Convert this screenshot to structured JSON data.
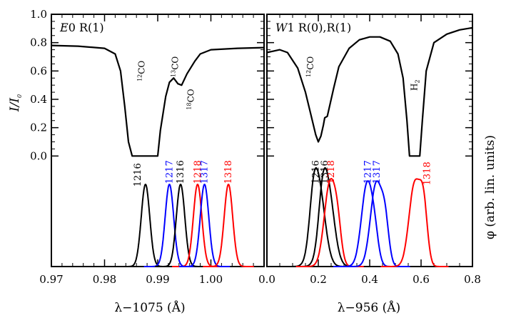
{
  "chart_data": {
    "type": "line",
    "y_axis": {
      "label_main": "I/I",
      "label_sub": "0",
      "ylim": [
        -0.78,
        1.0
      ],
      "ticks": [
        "0.0",
        "0.2",
        "0.4",
        "0.6",
        "0.8",
        "1.0"
      ],
      "tick_values": [
        0.0,
        0.2,
        0.4,
        0.6,
        0.8,
        1.0
      ]
    },
    "y_axis_right": {
      "label": "φ (arb. lin. units)"
    },
    "panels": [
      {
        "id": "E0",
        "label_italic": "E",
        "label_rest": "0  R(1)",
        "xlabel": "λ−1075 (Å)",
        "xlim": [
          0.97,
          1.01
        ],
        "x_ticks": [
          "0.97",
          "0.98",
          "0.99",
          "1.00"
        ],
        "x_tick_values": [
          0.97,
          0.98,
          0.99,
          1.0
        ],
        "transmission": {
          "x": [
            0.97,
            0.975,
            0.98,
            0.982,
            0.983,
            0.9838,
            0.9845,
            0.9852,
            0.986,
            0.99,
            0.9905,
            0.9915,
            0.9922,
            0.993,
            0.9938,
            0.9945,
            0.9955,
            0.997,
            0.998,
            1.0,
            1.005,
            1.01
          ],
          "y": [
            0.78,
            0.775,
            0.76,
            0.72,
            0.6,
            0.35,
            0.1,
            0.0,
            0.0,
            0.0,
            0.18,
            0.42,
            0.52,
            0.55,
            0.51,
            0.5,
            0.58,
            0.67,
            0.72,
            0.75,
            0.76,
            0.765
          ]
        },
        "annotations": [
          {
            "iso": "12",
            "mol": "CO",
            "x": 0.9875,
            "y": 0.6
          },
          {
            "iso": "13",
            "mol": "CO",
            "x": 0.9938,
            "y": 0.63
          },
          {
            "iso": "18",
            "mol": "C",
            "tail": "O",
            "x": 0.9968,
            "y": 0.4
          }
        ],
        "series": [
          {
            "name": "1216",
            "color": "#000000",
            "center": 0.9877,
            "sigma": 0.0008,
            "amp": 0.58,
            "label_y": -0.21
          },
          {
            "name": "1217",
            "color": "#0000ff",
            "center": 0.9922,
            "sigma": 0.0008,
            "amp": 0.58,
            "label_y": -0.03
          },
          {
            "name": "1316",
            "color": "#000000",
            "center": 0.9943,
            "sigma": 0.0008,
            "amp": 0.58,
            "label_y": -0.03
          },
          {
            "name": "1218",
            "color": "#ff0000",
            "center": 0.9975,
            "sigma": 0.0008,
            "amp": 0.58,
            "label_y": -0.03
          },
          {
            "name": "1317",
            "color": "#0000ff",
            "center": 0.9988,
            "sigma": 0.0008,
            "amp": 0.58,
            "label_y": -0.03
          },
          {
            "name": "1318",
            "color": "#ff0000",
            "center": 1.0033,
            "sigma": 0.0008,
            "amp": 0.58,
            "label_y": -0.03
          }
        ]
      },
      {
        "id": "W1",
        "label_italic": "W",
        "label_rest": "1  R(0),R(1)",
        "xlabel": "λ−956 (Å)",
        "xlim": [
          0.0,
          0.8
        ],
        "x_ticks": [
          "0.0",
          "0.2",
          "0.4",
          "0.6",
          "0.8"
        ],
        "x_tick_values": [
          0.0,
          0.2,
          0.4,
          0.6,
          0.8
        ],
        "transmission": {
          "x": [
            0.0,
            0.05,
            0.08,
            0.12,
            0.15,
            0.17,
            0.19,
            0.2,
            0.21,
            0.22,
            0.225,
            0.235,
            0.24,
            0.26,
            0.28,
            0.32,
            0.36,
            0.4,
            0.44,
            0.48,
            0.51,
            0.53,
            0.545,
            0.555,
            0.565,
            0.585,
            0.595,
            0.605,
            0.62,
            0.65,
            0.7,
            0.75,
            0.8
          ],
          "y": [
            0.73,
            0.75,
            0.73,
            0.62,
            0.45,
            0.3,
            0.15,
            0.1,
            0.14,
            0.22,
            0.27,
            0.28,
            0.32,
            0.48,
            0.63,
            0.76,
            0.82,
            0.84,
            0.84,
            0.81,
            0.72,
            0.55,
            0.25,
            0.0,
            0.0,
            0.0,
            0.0,
            0.25,
            0.6,
            0.8,
            0.86,
            0.89,
            0.905
          ]
        },
        "annotations": [
          {
            "iso": "12",
            "mol": "CO",
            "x": 0.18,
            "y": 0.63
          },
          {
            "mol": "H",
            "subs": "2",
            "x": 0.585,
            "y": 0.5
          }
        ],
        "series": [
          {
            "name": "1216",
            "color": "#000000",
            "components": [
              [
                0.2,
                0.025,
                0.58
              ],
              [
                0.18,
                0.015,
                0.2
              ]
            ],
            "label_y": -0.03
          },
          {
            "name": "1316",
            "color": "#000000",
            "components": [
              [
                0.235,
                0.025,
                0.58
              ],
              [
                0.215,
                0.015,
                0.2
              ]
            ],
            "label_y": -0.03
          },
          {
            "name": "1218",
            "color": "#ff0000",
            "components": [
              [
                0.245,
                0.022,
                0.58
              ],
              [
                0.275,
                0.015,
                0.22
              ]
            ],
            "label_y": -0.03
          },
          {
            "name": "1217",
            "color": "#0000ff",
            "components": [
              [
                0.39,
                0.022,
                0.58
              ],
              [
                0.42,
                0.015,
                0.15
              ]
            ],
            "label_y": -0.03
          },
          {
            "name": "1317",
            "color": "#0000ff",
            "components": [
              [
                0.425,
                0.022,
                0.58
              ],
              [
                0.46,
                0.015,
                0.28
              ]
            ],
            "label_y": -0.03
          },
          {
            "name": "1318",
            "color": "#ff0000",
            "components": [
              [
                0.575,
                0.022,
                0.58
              ],
              [
                0.61,
                0.015,
                0.38
              ]
            ],
            "label_y": -0.03
          }
        ]
      }
    ]
  }
}
